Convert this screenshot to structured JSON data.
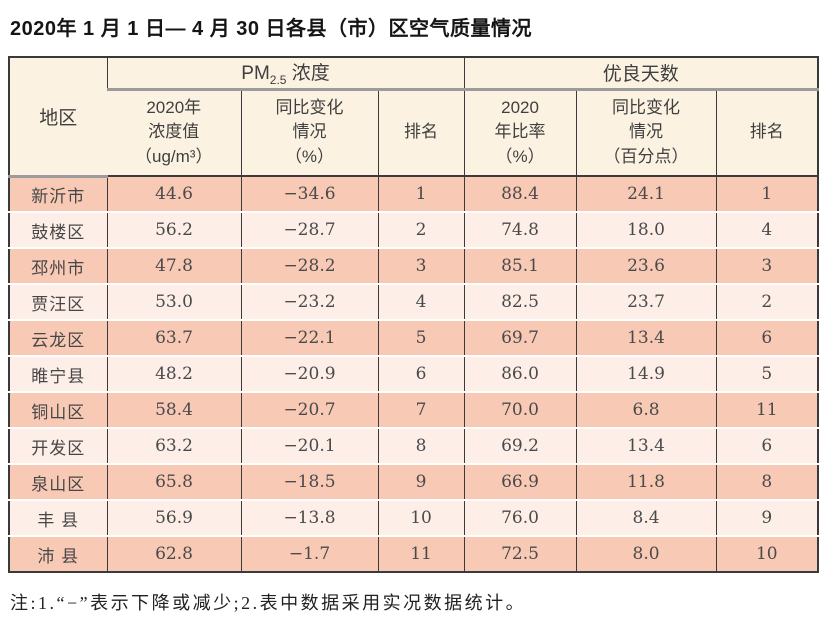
{
  "page": {
    "title": "2020年 1 月 1 日— 4 月 30 日各县（市）区空气质量情况",
    "note": "注:1.“−”表示下降或减少;2.表中数据采用实况数据统计。"
  },
  "table": {
    "region_header": "地区",
    "group_pm": {
      "prefix": "PM",
      "sub": "2.5",
      "suffix": " 浓度"
    },
    "group_good": "优良天数",
    "columns": [
      "2020年\n浓度值\n（ug/m³）",
      "同比变化\n情况\n（%）",
      "排名",
      "2020\n年比率\n（%）",
      "同比变化\n情况\n（百分点）",
      "排名"
    ],
    "rows": [
      [
        "新沂市",
        "44.6",
        "−34.6",
        "1",
        "88.4",
        "24.1",
        "1"
      ],
      [
        "鼓楼区",
        "56.2",
        "−28.7",
        "2",
        "74.8",
        "18.0",
        "4"
      ],
      [
        "邳州市",
        "47.8",
        "−28.2",
        "3",
        "85.1",
        "23.6",
        "3"
      ],
      [
        "贾汪区",
        "53.0",
        "−23.2",
        "4",
        "82.5",
        "23.7",
        "2"
      ],
      [
        "云龙区",
        "63.7",
        "−22.1",
        "5",
        "69.7",
        "13.4",
        "6"
      ],
      [
        "睢宁县",
        "48.2",
        "−20.9",
        "6",
        "86.0",
        "14.9",
        "5"
      ],
      [
        "铜山区",
        "58.4",
        "−20.7",
        "7",
        "70.0",
        "6.8",
        "11"
      ],
      [
        "开发区",
        "63.2",
        "−20.1",
        "8",
        "69.2",
        "13.4",
        "6"
      ],
      [
        "泉山区",
        "65.8",
        "−18.5",
        "9",
        "66.9",
        "11.8",
        "8"
      ],
      [
        "丰 县",
        "56.9",
        "−13.8",
        "10",
        "76.0",
        "8.4",
        "9"
      ],
      [
        "沛 县",
        "62.8",
        "−1.7",
        "11",
        "72.5",
        "8.0",
        "10"
      ]
    ]
  },
  "colors": {
    "row_odd": "#f8c9b4",
    "row_even": "#fdefe8",
    "header_bg": "#fcf2e2",
    "border_dark": "#3a3a3a",
    "group_underline": "#9b9b9b"
  }
}
